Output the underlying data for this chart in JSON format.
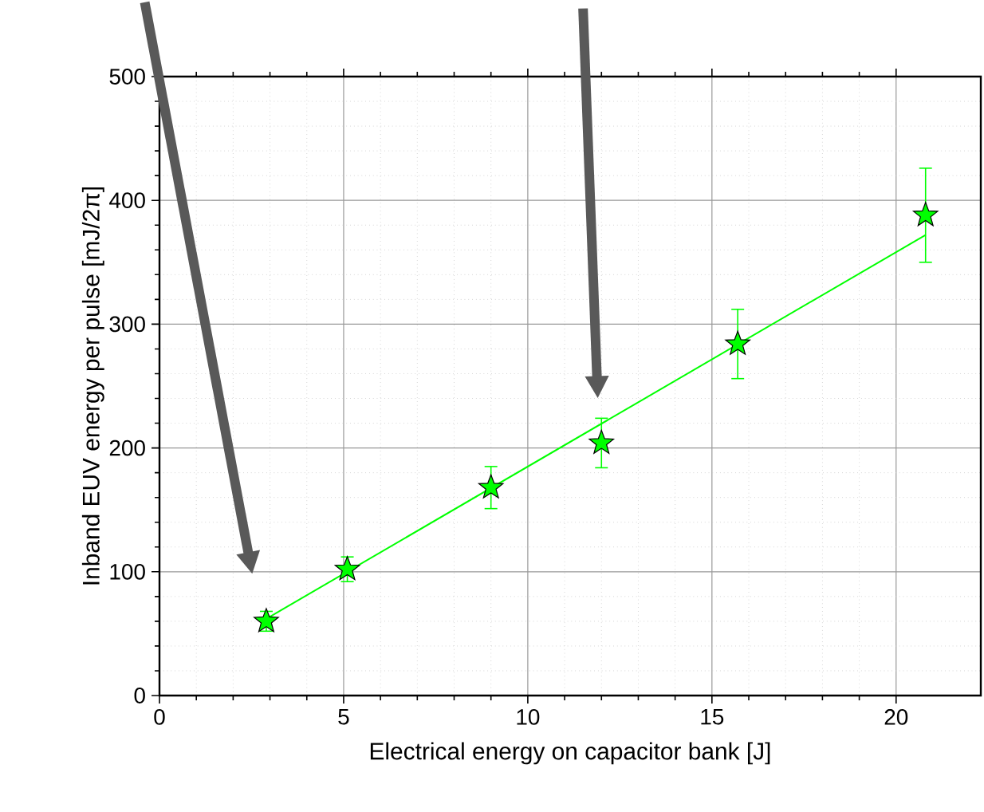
{
  "chart_data": {
    "type": "scatter",
    "xlabel": "Electrical energy on capacitor bank  [J]",
    "ylabel": "Inband EUV energy per pulse  [mJ/2π]",
    "xlim": [
      0,
      22.3
    ],
    "ylim": [
      0,
      500
    ],
    "xticks": [
      0,
      5,
      10,
      15,
      20
    ],
    "yticks": [
      0,
      100,
      200,
      300,
      400,
      500
    ],
    "grid": true,
    "series": [
      {
        "type": "line",
        "color": "#00ff00",
        "x": [
          2.9,
          20.8
        ],
        "values": [
          62,
          372
        ],
        "marker": "none"
      },
      {
        "color": "#00ff00",
        "x": [
          2.9,
          5.1,
          9.0,
          12.0,
          15.7,
          20.8
        ],
        "values": [
          60,
          102,
          168,
          204,
          284,
          388
        ],
        "errors": [
          8,
          10,
          17,
          20,
          28,
          38
        ],
        "marker": "star"
      }
    ]
  }
}
